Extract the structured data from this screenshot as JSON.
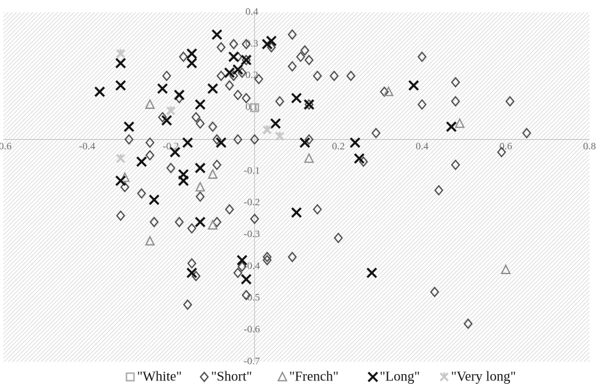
{
  "chart_data": {
    "type": "scatter",
    "title": "",
    "xlabel": "",
    "ylabel": "",
    "xlim": [
      -0.6,
      0.8
    ],
    "ylim": [
      -0.7,
      0.4
    ],
    "grid": false,
    "background": "diagonal-hatch",
    "legend_position": "bottom",
    "x_ticks": [
      {
        "value": -0.6,
        "label": "-0.6"
      },
      {
        "value": -0.4,
        "label": "-0.4"
      },
      {
        "value": -0.2,
        "label": "-0.2"
      },
      {
        "value": 0.2,
        "label": "0.2"
      },
      {
        "value": 0.4,
        "label": "0.4"
      },
      {
        "value": 0.6,
        "label": "0.6"
      },
      {
        "value": 0.8,
        "label": "0.8"
      }
    ],
    "y_ticks": [
      {
        "value": 0.4,
        "label": "0.4"
      },
      {
        "value": 0.3,
        "label": "0.3"
      },
      {
        "value": 0.2,
        "label": "0.2"
      },
      {
        "value": 0.1,
        "label": "0.1"
      },
      {
        "value": -0.1,
        "label": "-0.1"
      },
      {
        "value": -0.2,
        "label": "-0.2"
      },
      {
        "value": -0.3,
        "label": "-0.3"
      },
      {
        "value": -0.4,
        "label": "-0.4"
      },
      {
        "value": -0.5,
        "label": "-0.5"
      },
      {
        "value": -0.6,
        "label": "-0.6"
      },
      {
        "value": -0.7,
        "label": "-0.7"
      }
    ],
    "series": [
      {
        "name": "\"White\"",
        "marker": "square",
        "color": "#a6a6a6",
        "points": [
          [
            0.0,
            0.1
          ]
        ]
      },
      {
        "name": "\"Short\"",
        "marker": "diamond",
        "color": "#4a4a4a",
        "points": [
          [
            -0.08,
            0.29
          ],
          [
            -0.05,
            0.3
          ],
          [
            -0.02,
            0.3
          ],
          [
            0.04,
            0.29
          ],
          [
            0.09,
            0.33
          ],
          [
            0.12,
            0.28
          ],
          [
            -0.17,
            0.26
          ],
          [
            -0.04,
            0.26
          ],
          [
            -0.02,
            0.25
          ],
          [
            0.11,
            0.26
          ],
          [
            0.13,
            0.25
          ],
          [
            0.09,
            0.23
          ],
          [
            0.15,
            0.2
          ],
          [
            0.19,
            0.2
          ],
          [
            0.23,
            0.2
          ],
          [
            -0.21,
            0.2
          ],
          [
            -0.08,
            0.2
          ],
          [
            -0.05,
            0.2
          ],
          [
            -0.03,
            0.21
          ],
          [
            -0.06,
            0.17
          ],
          [
            0.01,
            0.19
          ],
          [
            0.31,
            0.15
          ],
          [
            0.4,
            0.26
          ],
          [
            0.48,
            0.18
          ],
          [
            -0.18,
            0.13
          ],
          [
            -0.04,
            0.14
          ],
          [
            -0.02,
            0.13
          ],
          [
            0.06,
            0.12
          ],
          [
            0.13,
            0.11
          ],
          [
            0.4,
            0.11
          ],
          [
            0.61,
            0.12
          ],
          [
            0.48,
            0.12
          ],
          [
            -0.22,
            0.07
          ],
          [
            -0.14,
            0.07
          ],
          [
            -0.13,
            0.05
          ],
          [
            -0.1,
            0.04
          ],
          [
            -0.3,
            0.0
          ],
          [
            -0.25,
            -0.01
          ],
          [
            -0.09,
            0.0
          ],
          [
            -0.04,
            0.0
          ],
          [
            0.0,
            0.0
          ],
          [
            0.13,
            0.0
          ],
          [
            0.29,
            0.02
          ],
          [
            0.65,
            0.02
          ],
          [
            0.59,
            -0.04
          ],
          [
            -0.25,
            -0.05
          ],
          [
            -0.2,
            -0.09
          ],
          [
            -0.09,
            -0.08
          ],
          [
            0.26,
            -0.07
          ],
          [
            0.48,
            -0.08
          ],
          [
            -0.31,
            -0.15
          ],
          [
            -0.27,
            -0.17
          ],
          [
            -0.13,
            -0.18
          ],
          [
            0.44,
            -0.16
          ],
          [
            -0.06,
            -0.22
          ],
          [
            0.15,
            -0.22
          ],
          [
            -0.32,
            -0.24
          ],
          [
            -0.24,
            -0.26
          ],
          [
            -0.18,
            -0.26
          ],
          [
            -0.15,
            -0.28
          ],
          [
            -0.09,
            -0.26
          ],
          [
            0.0,
            -0.25
          ],
          [
            0.2,
            -0.31
          ],
          [
            0.03,
            -0.37
          ],
          [
            -0.03,
            -0.4
          ],
          [
            0.03,
            -0.38
          ],
          [
            0.09,
            -0.37
          ],
          [
            -0.15,
            -0.39
          ],
          [
            -0.14,
            -0.43
          ],
          [
            -0.04,
            -0.42
          ],
          [
            -0.02,
            -0.49
          ],
          [
            -0.16,
            -0.52
          ],
          [
            0.43,
            -0.48
          ],
          [
            0.51,
            -0.58
          ]
        ]
      },
      {
        "name": "\"French\"",
        "marker": "triangle",
        "color": "#8c8c8c",
        "points": [
          [
            0.32,
            0.15
          ],
          [
            -0.25,
            0.11
          ],
          [
            0.49,
            0.05
          ],
          [
            0.13,
            -0.06
          ],
          [
            -0.31,
            -0.12
          ],
          [
            -0.1,
            -0.11
          ],
          [
            -0.13,
            -0.15
          ],
          [
            -0.1,
            -0.27
          ],
          [
            -0.25,
            -0.32
          ],
          [
            0.6,
            -0.41
          ]
        ]
      },
      {
        "name": "\"Long\"",
        "marker": "x",
        "color": "#111111",
        "points": [
          [
            -0.09,
            0.33
          ],
          [
            0.04,
            0.31
          ],
          [
            0.03,
            0.3
          ],
          [
            -0.15,
            0.27
          ],
          [
            -0.05,
            0.26
          ],
          [
            -0.32,
            0.24
          ],
          [
            -0.15,
            0.24
          ],
          [
            -0.02,
            0.25
          ],
          [
            -0.04,
            0.22
          ],
          [
            -0.06,
            0.21
          ],
          [
            -0.32,
            0.17
          ],
          [
            -0.22,
            0.16
          ],
          [
            -0.1,
            0.16
          ],
          [
            -0.37,
            0.15
          ],
          [
            -0.18,
            0.14
          ],
          [
            0.1,
            0.13
          ],
          [
            0.38,
            0.17
          ],
          [
            -0.13,
            0.11
          ],
          [
            0.13,
            0.11
          ],
          [
            -0.21,
            0.06
          ],
          [
            0.05,
            0.05
          ],
          [
            0.47,
            0.04
          ],
          [
            -0.3,
            0.04
          ],
          [
            -0.16,
            -0.01
          ],
          [
            -0.08,
            -0.01
          ],
          [
            0.12,
            -0.01
          ],
          [
            0.24,
            -0.01
          ],
          [
            -0.19,
            -0.04
          ],
          [
            0.25,
            -0.06
          ],
          [
            -0.27,
            -0.07
          ],
          [
            -0.13,
            -0.09
          ],
          [
            -0.17,
            -0.11
          ],
          [
            -0.17,
            -0.13
          ],
          [
            -0.32,
            -0.13
          ],
          [
            -0.24,
            -0.19
          ],
          [
            0.1,
            -0.23
          ],
          [
            -0.13,
            -0.26
          ],
          [
            -0.03,
            -0.38
          ],
          [
            -0.15,
            -0.42
          ],
          [
            -0.02,
            -0.44
          ],
          [
            0.28,
            -0.42
          ]
        ]
      },
      {
        "name": "\"Very long\"",
        "marker": "star",
        "color": "#c8c8c8",
        "points": [
          [
            -0.32,
            0.27
          ],
          [
            -0.2,
            0.09
          ],
          [
            0.03,
            0.03
          ],
          [
            0.06,
            0.01
          ],
          [
            -0.32,
            -0.06
          ]
        ]
      }
    ]
  }
}
